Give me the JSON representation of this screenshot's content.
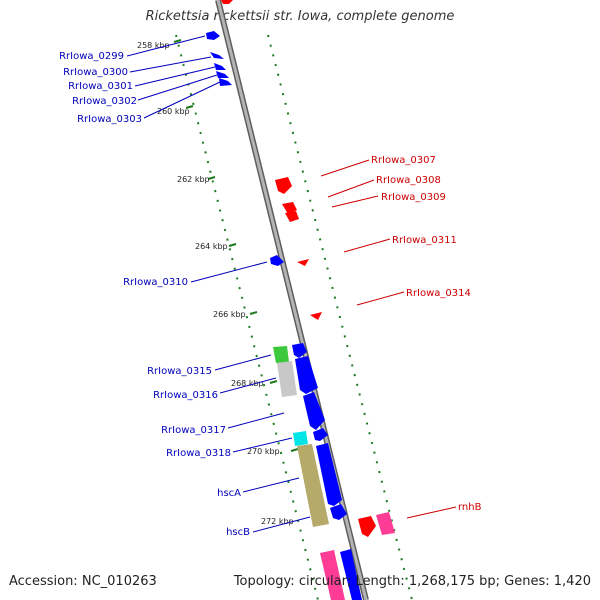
{
  "title": "Rickettsia rickettsii str. Iowa, complete genome",
  "footer": {
    "accession_label": "Accession:",
    "accession": "NC_010263",
    "topology_label": "Topology:",
    "topology": "circular",
    "length_label": "Length:",
    "length": "1,268,175 bp",
    "genes_label": "Genes:",
    "genes": "1,420"
  },
  "colors": {
    "forward": "#0000ff",
    "reverse": "#ff0000",
    "label_forward": "#0000bb",
    "label_reverse": "#cc0000",
    "backbone": "#8a8a8a",
    "dots": "#1e7a1e"
  },
  "ticks": [
    "258 kbp",
    "260 kbp",
    "262 kbp",
    "264 kbp",
    "266 kbp",
    "268 kbp",
    "270 kbp",
    "272 kbp"
  ],
  "left_labels": [
    "RrIowa_0299",
    "RrIowa_0300",
    "RrIowa_0301",
    "RrIowa_0302",
    "RrIowa_0303",
    "RrIowa_0310",
    "RrIowa_0315",
    "RrIowa_0316",
    "RrIowa_0317",
    "RrIowa_0318",
    "hscA",
    "hscB"
  ],
  "right_labels": [
    "RrIowa_0307",
    "RrIowa_0308",
    "RrIowa_0309",
    "RrIowa_0311",
    "RrIowa_0314",
    "rnhB"
  ]
}
